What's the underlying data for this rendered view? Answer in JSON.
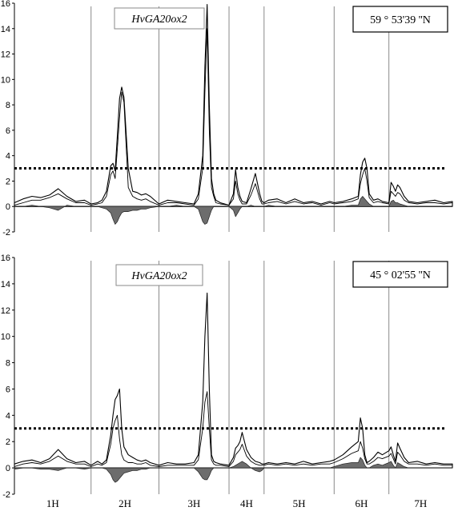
{
  "chart_data": [
    {
      "type": "line",
      "panel": "top",
      "gene_label": "HvGA20ox2",
      "latitude_label": "59 ° 53'39 ''N",
      "ylim": [
        -2,
        16
      ],
      "yticks": [
        -2,
        0,
        2,
        4,
        6,
        8,
        10,
        12,
        14,
        16
      ],
      "threshold": 3,
      "chromosomes": [
        "1H",
        "2H",
        "3H",
        "4H",
        "5H",
        "6H",
        "7H"
      ],
      "chromosome_boundaries": [
        0.175,
        0.33,
        0.49,
        0.57,
        0.73,
        0.855
      ],
      "x": [
        0.0,
        0.02,
        0.04,
        0.06,
        0.08,
        0.1,
        0.12,
        0.14,
        0.16,
        0.175,
        0.19,
        0.2,
        0.21,
        0.22,
        0.225,
        0.23,
        0.235,
        0.24,
        0.245,
        0.25,
        0.26,
        0.27,
        0.28,
        0.29,
        0.3,
        0.31,
        0.33,
        0.35,
        0.37,
        0.39,
        0.41,
        0.42,
        0.43,
        0.435,
        0.44,
        0.445,
        0.45,
        0.455,
        0.46,
        0.47,
        0.49,
        0.5,
        0.505,
        0.51,
        0.515,
        0.52,
        0.53,
        0.54,
        0.55,
        0.56,
        0.565,
        0.57,
        0.58,
        0.6,
        0.62,
        0.64,
        0.66,
        0.68,
        0.7,
        0.72,
        0.73,
        0.75,
        0.77,
        0.785,
        0.79,
        0.795,
        0.8,
        0.805,
        0.81,
        0.82,
        0.83,
        0.84,
        0.855,
        0.86,
        0.865,
        0.87,
        0.875,
        0.88,
        0.89,
        0.9,
        0.92,
        0.94,
        0.96,
        0.98,
        1.0
      ],
      "series": [
        {
          "values": [
            0.3,
            0.6,
            0.8,
            0.7,
            0.9,
            1.4,
            0.8,
            0.4,
            0.5,
            0.2,
            0.3,
            0.5,
            1.2,
            3.2,
            3.4,
            2.8,
            5.5,
            8.5,
            9.4,
            8.6,
            3.0,
            1.2,
            1.1,
            0.9,
            1.0,
            0.8,
            0.2,
            0.5,
            0.4,
            0.3,
            0.2,
            1.0,
            4.0,
            11.0,
            15.9,
            8.0,
            2.2,
            1.0,
            0.5,
            0.3,
            0.1,
            1.0,
            2.9,
            1.5,
            0.8,
            0.4,
            0.3,
            1.4,
            2.6,
            1.0,
            0.4,
            0.3,
            0.5,
            0.6,
            0.3,
            0.6,
            0.3,
            0.4,
            0.2,
            0.4,
            0.3,
            0.4,
            0.6,
            0.8,
            2.5,
            3.5,
            3.8,
            3.0,
            1.0,
            0.5,
            0.6,
            0.4,
            0.3,
            1.9,
            1.6,
            1.2,
            1.7,
            1.5,
            0.8,
            0.4,
            0.3,
            0.4,
            0.5,
            0.3,
            0.4
          ]
        },
        {
          "values": [
            0.1,
            0.3,
            0.5,
            0.5,
            0.7,
            1.0,
            0.6,
            0.3,
            0.3,
            0.1,
            0.2,
            0.3,
            0.8,
            2.5,
            2.8,
            2.2,
            4.5,
            7.0,
            9.0,
            8.2,
            1.5,
            0.8,
            0.6,
            0.5,
            0.6,
            0.4,
            0.1,
            0.3,
            0.3,
            0.2,
            0.1,
            0.6,
            3.0,
            9.0,
            14.0,
            6.0,
            1.5,
            0.8,
            0.3,
            0.2,
            0.1,
            0.6,
            2.0,
            1.0,
            0.5,
            0.2,
            0.2,
            0.9,
            1.8,
            0.6,
            0.2,
            0.2,
            0.3,
            0.4,
            0.2,
            0.4,
            0.2,
            0.3,
            0.1,
            0.3,
            0.2,
            0.3,
            0.4,
            0.6,
            1.8,
            2.5,
            3.0,
            2.0,
            0.7,
            0.3,
            0.4,
            0.3,
            0.2,
            1.2,
            1.0,
            0.8,
            1.1,
            1.0,
            0.5,
            0.3,
            0.2,
            0.3,
            0.3,
            0.2,
            0.3
          ]
        },
        {
          "values": [
            0.0,
            0.0,
            0.1,
            0.0,
            -0.1,
            -0.3,
            0.1,
            0.0,
            0.0,
            0.0,
            0.0,
            -0.1,
            -0.2,
            -0.5,
            -1.0,
            -1.4,
            -1.2,
            -0.8,
            -0.5,
            -0.4,
            -0.4,
            -0.3,
            -0.3,
            -0.2,
            -0.2,
            -0.1,
            0.0,
            0.0,
            0.1,
            0.0,
            0.0,
            -0.2,
            -1.2,
            -1.4,
            -1.3,
            -0.8,
            -0.3,
            0.0,
            0.0,
            0.0,
            0.0,
            -0.3,
            -0.8,
            -0.5,
            -0.2,
            0.0,
            0.0,
            0.1,
            0.0,
            0.0,
            0.0,
            0.0,
            0.1,
            0.0,
            0.0,
            0.0,
            0.0,
            0.0,
            0.0,
            0.0,
            0.0,
            0.0,
            0.1,
            0.1,
            0.6,
            0.8,
            0.6,
            0.4,
            0.2,
            0.0,
            0.0,
            0.0,
            0.0,
            0.4,
            0.5,
            0.3,
            0.3,
            0.2,
            0.1,
            0.0,
            0.0,
            0.0,
            0.0,
            0.0,
            0.0
          ]
        }
      ]
    },
    {
      "type": "line",
      "panel": "bottom",
      "gene_label": "HvGA20ox2",
      "latitude_label": "45 ° 02'55 ''N",
      "ylim": [
        -2,
        16
      ],
      "yticks": [
        -2,
        0,
        2,
        4,
        6,
        8,
        10,
        12,
        14,
        16
      ],
      "threshold": 3,
      "chromosomes": [
        "1H",
        "2H",
        "3H",
        "4H",
        "5H",
        "6H",
        "7H"
      ],
      "chromosome_boundaries": [
        0.175,
        0.33,
        0.49,
        0.57,
        0.73,
        0.855
      ],
      "x": [
        0.0,
        0.02,
        0.04,
        0.06,
        0.08,
        0.1,
        0.12,
        0.14,
        0.16,
        0.175,
        0.19,
        0.2,
        0.21,
        0.22,
        0.225,
        0.23,
        0.235,
        0.24,
        0.245,
        0.25,
        0.26,
        0.27,
        0.28,
        0.29,
        0.3,
        0.31,
        0.33,
        0.35,
        0.37,
        0.39,
        0.41,
        0.42,
        0.43,
        0.435,
        0.44,
        0.445,
        0.45,
        0.455,
        0.46,
        0.47,
        0.49,
        0.5,
        0.505,
        0.51,
        0.515,
        0.52,
        0.53,
        0.54,
        0.55,
        0.56,
        0.565,
        0.57,
        0.58,
        0.6,
        0.62,
        0.64,
        0.66,
        0.68,
        0.7,
        0.72,
        0.73,
        0.75,
        0.77,
        0.785,
        0.79,
        0.795,
        0.8,
        0.805,
        0.81,
        0.82,
        0.83,
        0.84,
        0.855,
        0.86,
        0.865,
        0.87,
        0.875,
        0.88,
        0.89,
        0.9,
        0.92,
        0.94,
        0.96,
        0.98,
        1.0
      ],
      "series": [
        {
          "values": [
            0.3,
            0.5,
            0.6,
            0.4,
            0.7,
            1.4,
            0.7,
            0.4,
            0.5,
            0.2,
            0.5,
            0.3,
            0.6,
            2.5,
            4.0,
            5.2,
            5.5,
            6.0,
            3.0,
            1.6,
            1.0,
            0.8,
            0.6,
            0.5,
            0.6,
            0.4,
            0.2,
            0.4,
            0.3,
            0.3,
            0.4,
            1.0,
            5.0,
            10.0,
            13.3,
            6.0,
            1.0,
            0.5,
            0.4,
            0.3,
            0.2,
            0.8,
            1.5,
            1.7,
            2.0,
            2.7,
            1.4,
            0.8,
            0.5,
            0.4,
            0.3,
            0.3,
            0.4,
            0.3,
            0.4,
            0.3,
            0.5,
            0.3,
            0.4,
            0.5,
            0.6,
            1.0,
            1.6,
            2.0,
            3.8,
            3.0,
            1.0,
            0.4,
            0.5,
            0.8,
            1.2,
            1.0,
            1.3,
            1.6,
            1.0,
            0.5,
            1.9,
            1.5,
            0.8,
            0.4,
            0.5,
            0.3,
            0.4,
            0.3,
            0.3
          ]
        },
        {
          "values": [
            0.1,
            0.3,
            0.4,
            0.3,
            0.5,
            0.9,
            0.5,
            0.3,
            0.3,
            0.1,
            0.3,
            0.2,
            0.4,
            1.8,
            3.0,
            3.6,
            4.0,
            2.2,
            1.0,
            0.6,
            0.4,
            0.4,
            0.3,
            0.3,
            0.4,
            0.2,
            0.1,
            0.2,
            0.2,
            0.2,
            0.2,
            0.6,
            3.0,
            5.0,
            5.8,
            3.0,
            0.6,
            0.3,
            0.2,
            0.2,
            0.1,
            0.5,
            1.0,
            1.2,
            1.4,
            1.8,
            0.9,
            0.5,
            0.3,
            0.2,
            0.2,
            0.2,
            0.3,
            0.2,
            0.3,
            0.2,
            0.3,
            0.2,
            0.3,
            0.3,
            0.4,
            0.7,
            1.1,
            1.3,
            2.0,
            1.5,
            0.7,
            0.3,
            0.3,
            0.5,
            0.8,
            0.7,
            0.9,
            1.1,
            0.7,
            0.3,
            1.2,
            1.0,
            0.5,
            0.3,
            0.3,
            0.2,
            0.3,
            0.2,
            0.2
          ]
        },
        {
          "values": [
            -0.1,
            0.0,
            0.0,
            -0.1,
            -0.1,
            -0.2,
            0.0,
            0.0,
            -0.1,
            0.0,
            0.0,
            0.0,
            -0.1,
            -0.5,
            -0.9,
            -1.1,
            -1.0,
            -0.8,
            -0.6,
            -0.4,
            -0.3,
            -0.2,
            -0.2,
            -0.1,
            -0.1,
            0.0,
            0.0,
            0.0,
            0.0,
            0.0,
            0.0,
            -0.3,
            -0.8,
            -0.9,
            -0.9,
            -0.6,
            -0.2,
            0.0,
            0.0,
            0.0,
            0.0,
            0.1,
            0.2,
            0.3,
            0.4,
            0.5,
            0.3,
            0.0,
            -0.2,
            -0.3,
            -0.2,
            0.0,
            0.0,
            0.0,
            0.0,
            0.0,
            0.0,
            0.0,
            0.0,
            0.0,
            0.1,
            0.3,
            0.4,
            0.4,
            0.8,
            0.6,
            0.2,
            0.0,
            0.0,
            0.2,
            0.3,
            0.2,
            0.4,
            0.5,
            0.2,
            0.0,
            0.4,
            0.3,
            0.1,
            0.0,
            0.0,
            0.0,
            0.0,
            0.0,
            0.0
          ]
        }
      ]
    }
  ]
}
